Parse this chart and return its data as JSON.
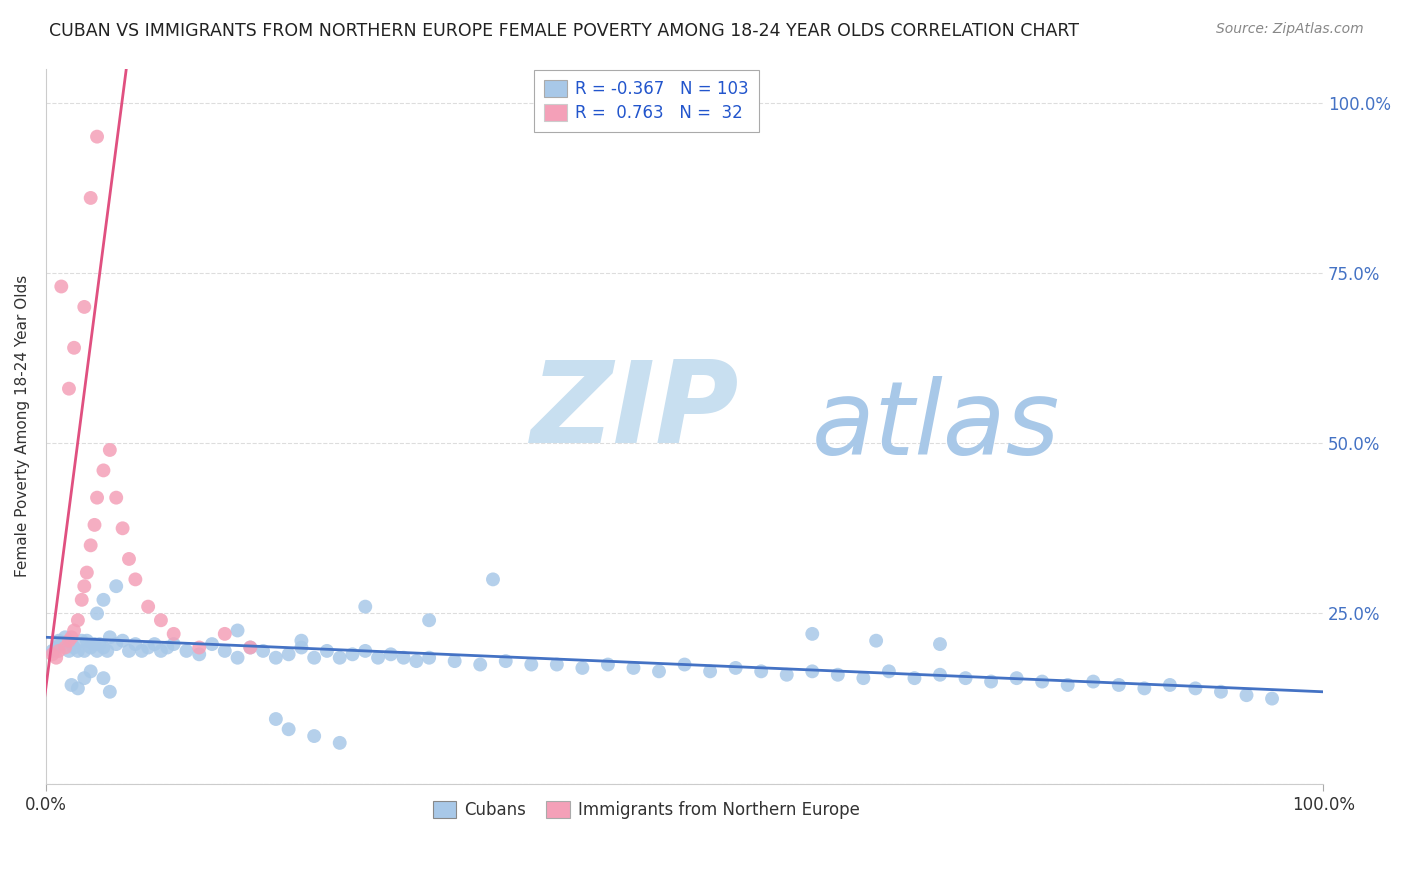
{
  "title": "CUBAN VS IMMIGRANTS FROM NORTHERN EUROPE FEMALE POVERTY AMONG 18-24 YEAR OLDS CORRELATION CHART",
  "source": "Source: ZipAtlas.com",
  "ylabel": "Female Poverty Among 18-24 Year Olds",
  "cubans_color": "#a8c8e8",
  "northern_europe_color": "#f4a0b8",
  "trendline_cubans_color": "#4472c4",
  "trendline_ne_color": "#e05080",
  "watermark_zip": "ZIP",
  "watermark_atlas": "atlas",
  "watermark_color_zip": "#c8dff0",
  "watermark_color_atlas": "#a8c8e8",
  "background_color": "#ffffff",
  "title_fontsize": 12.5,
  "R_cubans": -0.367,
  "N_cubans": 103,
  "R_ne": 0.763,
  "N_ne": 32,
  "legend_blue_R": "-0.367",
  "legend_blue_N": "103",
  "legend_pink_R": "0.763",
  "legend_pink_N": "32",
  "xlim": [
    0.0,
    1.0
  ],
  "ylim": [
    0.0,
    1.05
  ],
  "right_yticks": [
    0.25,
    0.5,
    0.75,
    1.0
  ],
  "right_yticklabels": [
    "25.0%",
    "50.0%",
    "75.0%",
    "100.0%"
  ],
  "cubans_x": [
    0.005,
    0.008,
    0.01,
    0.012,
    0.015,
    0.018,
    0.02,
    0.022,
    0.025,
    0.028,
    0.03,
    0.032,
    0.035,
    0.038,
    0.04,
    0.042,
    0.045,
    0.048,
    0.05,
    0.055,
    0.06,
    0.065,
    0.07,
    0.075,
    0.08,
    0.085,
    0.09,
    0.095,
    0.1,
    0.11,
    0.12,
    0.13,
    0.14,
    0.15,
    0.16,
    0.17,
    0.18,
    0.19,
    0.2,
    0.21,
    0.22,
    0.23,
    0.24,
    0.25,
    0.26,
    0.27,
    0.28,
    0.29,
    0.3,
    0.32,
    0.34,
    0.36,
    0.38,
    0.4,
    0.42,
    0.44,
    0.46,
    0.48,
    0.5,
    0.52,
    0.54,
    0.56,
    0.58,
    0.6,
    0.62,
    0.64,
    0.66,
    0.68,
    0.7,
    0.72,
    0.74,
    0.76,
    0.78,
    0.8,
    0.82,
    0.84,
    0.86,
    0.88,
    0.9,
    0.92,
    0.94,
    0.96,
    0.025,
    0.03,
    0.035,
    0.02,
    0.04,
    0.045,
    0.05,
    0.055,
    0.25,
    0.3,
    0.35,
    0.2,
    0.15,
    0.6,
    0.65,
    0.7,
    0.18,
    0.19,
    0.21,
    0.23,
    0.045
  ],
  "cubans_y": [
    0.195,
    0.2,
    0.21,
    0.205,
    0.215,
    0.195,
    0.205,
    0.2,
    0.195,
    0.21,
    0.195,
    0.21,
    0.2,
    0.205,
    0.195,
    0.205,
    0.2,
    0.195,
    0.215,
    0.205,
    0.21,
    0.195,
    0.205,
    0.195,
    0.2,
    0.205,
    0.195,
    0.2,
    0.205,
    0.195,
    0.19,
    0.205,
    0.195,
    0.185,
    0.2,
    0.195,
    0.185,
    0.19,
    0.2,
    0.185,
    0.195,
    0.185,
    0.19,
    0.195,
    0.185,
    0.19,
    0.185,
    0.18,
    0.185,
    0.18,
    0.175,
    0.18,
    0.175,
    0.175,
    0.17,
    0.175,
    0.17,
    0.165,
    0.175,
    0.165,
    0.17,
    0.165,
    0.16,
    0.165,
    0.16,
    0.155,
    0.165,
    0.155,
    0.16,
    0.155,
    0.15,
    0.155,
    0.15,
    0.145,
    0.15,
    0.145,
    0.14,
    0.145,
    0.14,
    0.135,
    0.13,
    0.125,
    0.14,
    0.155,
    0.165,
    0.145,
    0.25,
    0.27,
    0.135,
    0.29,
    0.26,
    0.24,
    0.3,
    0.21,
    0.225,
    0.22,
    0.21,
    0.205,
    0.095,
    0.08,
    0.07,
    0.06,
    0.155
  ],
  "ne_x": [
    0.005,
    0.008,
    0.01,
    0.015,
    0.018,
    0.02,
    0.022,
    0.025,
    0.028,
    0.03,
    0.032,
    0.035,
    0.038,
    0.04,
    0.045,
    0.05,
    0.055,
    0.06,
    0.065,
    0.07,
    0.08,
    0.09,
    0.1,
    0.12,
    0.14,
    0.16,
    0.018,
    0.022,
    0.03,
    0.035,
    0.04,
    0.012
  ],
  "ne_y": [
    0.19,
    0.185,
    0.195,
    0.2,
    0.21,
    0.215,
    0.225,
    0.24,
    0.27,
    0.29,
    0.31,
    0.35,
    0.38,
    0.42,
    0.46,
    0.49,
    0.42,
    0.375,
    0.33,
    0.3,
    0.26,
    0.24,
    0.22,
    0.2,
    0.22,
    0.2,
    0.58,
    0.64,
    0.7,
    0.86,
    0.95,
    0.73
  ]
}
